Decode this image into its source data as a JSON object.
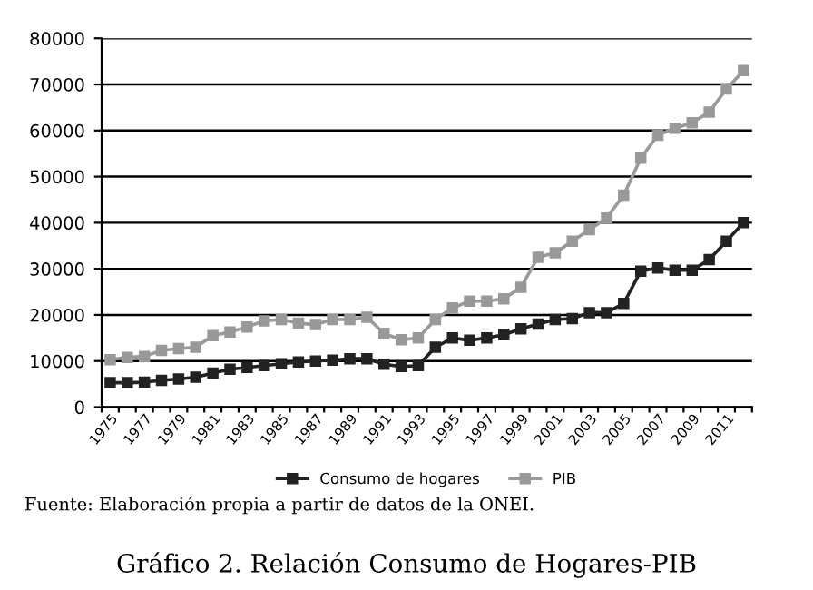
{
  "chart_data": {
    "type": "line",
    "title": "Gráfico 2. Relación Consumo de Hogares-PIB",
    "annotations": [
      "Fuente: Elaboración propia a partir de datos de la ONEI."
    ],
    "categories": [
      "1975",
      null,
      "1977",
      null,
      "1979",
      null,
      "1981",
      null,
      "1983",
      null,
      "1985",
      null,
      "1987",
      null,
      "1989",
      null,
      "1991",
      null,
      "1993",
      null,
      "1995",
      null,
      "1997",
      null,
      "1999",
      null,
      "2001",
      null,
      "2003",
      null,
      "2005",
      null,
      "2007",
      null,
      "2009",
      null,
      "2011",
      null
    ],
    "series": [
      {
        "name": "Consumo de hogares",
        "color": "#222222",
        "values": [
          5300,
          5300,
          5400,
          5800,
          6100,
          6500,
          7400,
          8200,
          8600,
          9000,
          9400,
          9800,
          10000,
          10200,
          10500,
          10500,
          9300,
          8800,
          9000,
          13000,
          15000,
          14500,
          15000,
          15700,
          17000,
          18000,
          19000,
          19200,
          20500,
          20500,
          22500,
          29500,
          30200,
          29700,
          29700,
          32000,
          36000,
          40000
        ]
      },
      {
        "name": "PIB",
        "color": "#999999",
        "values": [
          10300,
          10800,
          11000,
          12300,
          12700,
          13000,
          15500,
          16300,
          17400,
          18700,
          19000,
          18200,
          17900,
          19000,
          19000,
          19500,
          16000,
          14600,
          15000,
          19000,
          21500,
          23000,
          23000,
          23500,
          26000,
          32500,
          33500,
          36000,
          38500,
          41000,
          46000,
          54000,
          59000,
          60500,
          61700,
          64000,
          69000,
          73000
        ]
      }
    ],
    "ylim": [
      0,
      80000
    ],
    "yticks": [
      0,
      10000,
      20000,
      30000,
      40000,
      50000,
      60000,
      70000,
      80000
    ],
    "grid": "y",
    "legend": "bottom",
    "marker": "square",
    "line_style": "solid"
  }
}
